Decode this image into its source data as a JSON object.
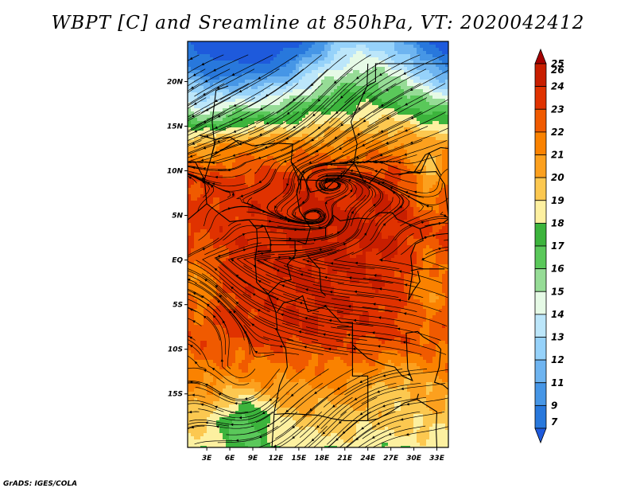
{
  "title": "WBPT [C] and Sreamline at 850hPa, VT: 2020042412",
  "credit": "GrADS: IGES/COLA",
  "map": {
    "lat_range": [
      -21,
      24.5
    ],
    "lon_range": [
      0.5,
      34.5
    ],
    "lat_ticks": [
      {
        "label": "20N",
        "value": 20
      },
      {
        "label": "15N",
        "value": 15
      },
      {
        "label": "10N",
        "value": 10
      },
      {
        "label": "5N",
        "value": 5
      },
      {
        "label": "EQ",
        "value": 0
      },
      {
        "label": "5S",
        "value": -5
      },
      {
        "label": "10S",
        "value": -10
      },
      {
        "label": "15S",
        "value": -15
      }
    ],
    "lon_ticks": [
      {
        "label": "3E",
        "value": 3
      },
      {
        "label": "6E",
        "value": 6
      },
      {
        "label": "9E",
        "value": 9
      },
      {
        "label": "12E",
        "value": 12
      },
      {
        "label": "15E",
        "value": 15
      },
      {
        "label": "18E",
        "value": 18
      },
      {
        "label": "21E",
        "value": 21
      },
      {
        "label": "24E",
        "value": 24
      },
      {
        "label": "27E",
        "value": 27
      },
      {
        "label": "30E",
        "value": 30
      },
      {
        "label": "33E",
        "value": 33
      }
    ]
  },
  "colorbar": {
    "levels": [
      {
        "label": "26",
        "color": "#a50000"
      },
      {
        "label": "25",
        "color": "#c81e00"
      },
      {
        "label": "24",
        "color": "#e03200"
      },
      {
        "label": "23",
        "color": "#f05a00"
      },
      {
        "label": "22",
        "color": "#fa8200"
      },
      {
        "label": "21",
        "color": "#fca01e"
      },
      {
        "label": "20",
        "color": "#fcc850"
      },
      {
        "label": "19",
        "color": "#fdf0a0"
      },
      {
        "label": "18",
        "color": "#3cb43c"
      },
      {
        "label": "17",
        "color": "#5ac85a"
      },
      {
        "label": "16",
        "color": "#96dc96"
      },
      {
        "label": "15",
        "color": "#e6fae6"
      },
      {
        "label": "14",
        "color": "#bce6fa"
      },
      {
        "label": "13",
        "color": "#96d2fa"
      },
      {
        "label": "12",
        "color": "#6eb4f0"
      },
      {
        "label": "11",
        "color": "#4696e6"
      },
      {
        "label": "9",
        "color": "#2878dc"
      },
      {
        "label": "7",
        "color": "#1e5adc"
      }
    ]
  }
}
